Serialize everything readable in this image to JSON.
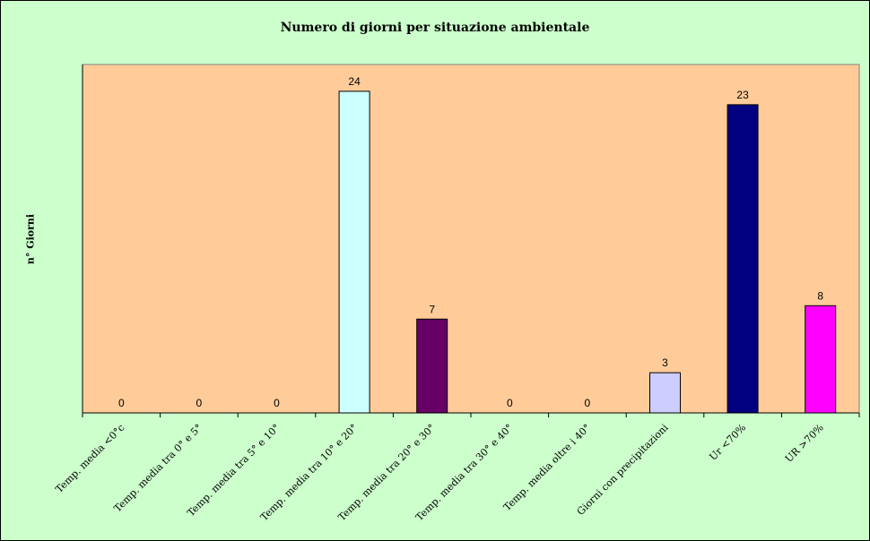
{
  "chart_data": {
    "type": "bar",
    "title": "Numero di giorni per situazione ambientale",
    "ylabel": "n° Giorni",
    "xlabel": "",
    "categories": [
      "Temp. media <0°c",
      "Temp. media tra 0° e 5°",
      "Temp. media tra 5° e 10°",
      "Temp. media tra 10° e 20°",
      "Temp. media tra 20° e 30°",
      "Temp. media tra 30° e 40°",
      "Temp. media oltre i 40°",
      "Giorni con precipitazioni",
      "Ur <70%",
      "UR >70%"
    ],
    "values": [
      0,
      0,
      0,
      24,
      7,
      0,
      0,
      3,
      23,
      8
    ],
    "value_labels": [
      "0",
      "0",
      "0",
      "24",
      "7",
      "0",
      "0",
      "3",
      "23",
      "8"
    ],
    "bar_colors": [
      "#ccffff",
      "#ccffff",
      "#ccffff",
      "#ccffff",
      "#660066",
      "#ccffff",
      "#ccffff",
      "#ccccff",
      "#000080",
      "#ff00ff"
    ],
    "ylim": [
      0,
      26
    ],
    "grid": false,
    "legend": "none",
    "colors": {
      "chart_area": "#ccffcc",
      "plot_area": "#ffcc99",
      "axis": "#000000"
    }
  }
}
